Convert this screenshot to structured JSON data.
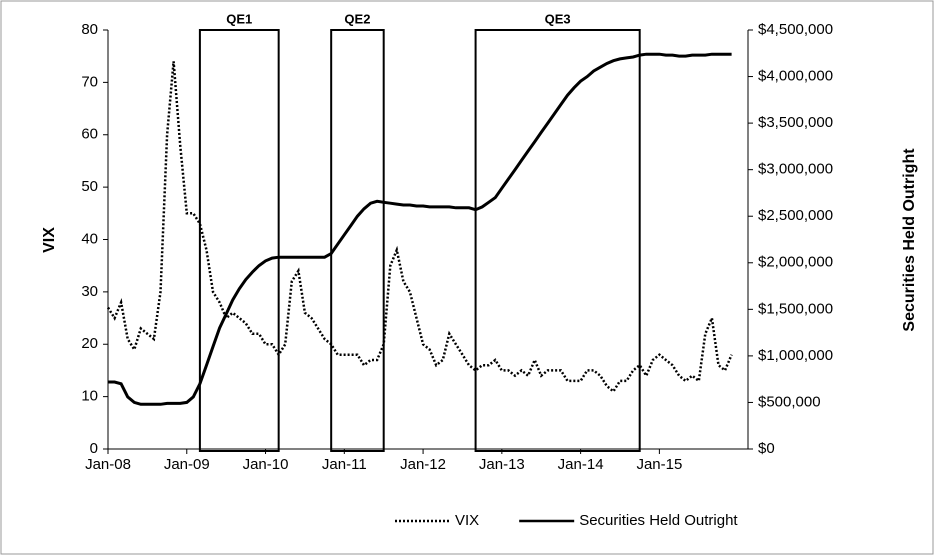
{
  "chart_data": {
    "type": "line",
    "y_label": "VIX",
    "y2_label": "Securities Held Outright",
    "categories": [
      "Jan-08",
      null,
      null,
      null,
      null,
      null,
      null,
      null,
      null,
      null,
      null,
      null,
      "Jan-09",
      null,
      null,
      null,
      null,
      null,
      null,
      null,
      null,
      null,
      null,
      null,
      "Jan-10",
      null,
      null,
      null,
      null,
      null,
      null,
      null,
      null,
      null,
      null,
      null,
      "Jan-11",
      null,
      null,
      null,
      null,
      null,
      null,
      null,
      null,
      null,
      null,
      null,
      "Jan-12",
      null,
      null,
      null,
      null,
      null,
      null,
      null,
      null,
      null,
      null,
      null,
      "Jan-13",
      null,
      null,
      null,
      null,
      null,
      null,
      null,
      null,
      null,
      null,
      null,
      "Jan-14",
      null,
      null,
      null,
      null,
      null,
      null,
      null,
      null,
      null,
      null,
      null,
      "Jan-15",
      null,
      null,
      null,
      null,
      null,
      null,
      null,
      null,
      null,
      null,
      null
    ],
    "series": [
      {
        "name": "VIX",
        "color": "#000000",
        "style": "dotted",
        "axis": "y",
        "values": [
          27,
          25,
          28,
          21,
          19,
          23,
          22,
          21,
          30,
          60,
          74,
          58,
          45,
          45,
          43,
          38,
          30,
          28,
          25,
          26,
          25,
          24,
          22,
          22,
          20,
          20,
          18,
          20,
          32,
          34,
          26,
          25,
          23,
          21,
          20,
          18,
          18,
          18,
          18,
          16,
          17,
          17,
          20,
          35,
          38,
          32,
          30,
          25,
          20,
          19,
          16,
          17,
          22,
          20,
          18,
          16,
          15,
          16,
          16,
          17,
          15,
          15,
          14,
          15,
          14,
          17,
          14,
          15,
          15,
          15,
          13,
          13,
          13,
          15,
          15,
          14,
          12,
          11,
          13,
          13,
          15,
          16,
          14,
          17,
          18,
          17,
          16,
          14,
          13,
          14,
          13,
          22,
          25,
          16,
          15,
          18
        ]
      },
      {
        "name": "Securities Held Outright",
        "color": "#000000",
        "style": "solid",
        "axis": "y2",
        "values": [
          720000,
          720000,
          700000,
          560000,
          500000,
          480000,
          480000,
          480000,
          480000,
          490000,
          490000,
          490000,
          500000,
          560000,
          700000,
          900000,
          1100000,
          1300000,
          1450000,
          1600000,
          1720000,
          1820000,
          1900000,
          1970000,
          2020000,
          2050000,
          2060000,
          2060000,
          2060000,
          2060000,
          2060000,
          2060000,
          2060000,
          2060000,
          2100000,
          2200000,
          2300000,
          2400000,
          2500000,
          2580000,
          2640000,
          2660000,
          2650000,
          2640000,
          2630000,
          2620000,
          2620000,
          2610000,
          2610000,
          2600000,
          2600000,
          2600000,
          2600000,
          2590000,
          2590000,
          2590000,
          2570000,
          2600000,
          2650000,
          2700000,
          2800000,
          2900000,
          3000000,
          3100000,
          3200000,
          3300000,
          3400000,
          3500000,
          3600000,
          3700000,
          3800000,
          3880000,
          3950000,
          4000000,
          4060000,
          4100000,
          4140000,
          4170000,
          4190000,
          4200000,
          4210000,
          4230000,
          4240000,
          4240000,
          4240000,
          4230000,
          4230000,
          4220000,
          4220000,
          4230000,
          4230000,
          4230000,
          4240000,
          4240000,
          4240000,
          4240000
        ]
      }
    ],
    "ylim": [
      0,
      80
    ],
    "yticks": [
      0,
      10,
      20,
      30,
      40,
      50,
      60,
      70,
      80
    ],
    "y2lim": [
      0,
      4500000
    ],
    "y2ticks": [
      {
        "value": 0,
        "label": "$0"
      },
      {
        "value": 500000,
        "label": "$500,000"
      },
      {
        "value": 1000000,
        "label": "$1,000,000"
      },
      {
        "value": 1500000,
        "label": "$1,500,000"
      },
      {
        "value": 2000000,
        "label": "$2,000,000"
      },
      {
        "value": 2500000,
        "label": "$2,500,000"
      },
      {
        "value": 3000000,
        "label": "$3,000,000"
      },
      {
        "value": 3500000,
        "label": "$3,500,000"
      },
      {
        "value": 4000000,
        "label": "$4,000,000"
      },
      {
        "value": 4500000,
        "label": "$4,500,000"
      }
    ],
    "annotations": [
      {
        "text": "QE1",
        "from": 14,
        "to": 26
      },
      {
        "text": "QE2",
        "from": 34,
        "to": 42
      },
      {
        "text": "QE3",
        "from": 56,
        "to": 81
      }
    ],
    "legend": "bottom"
  }
}
